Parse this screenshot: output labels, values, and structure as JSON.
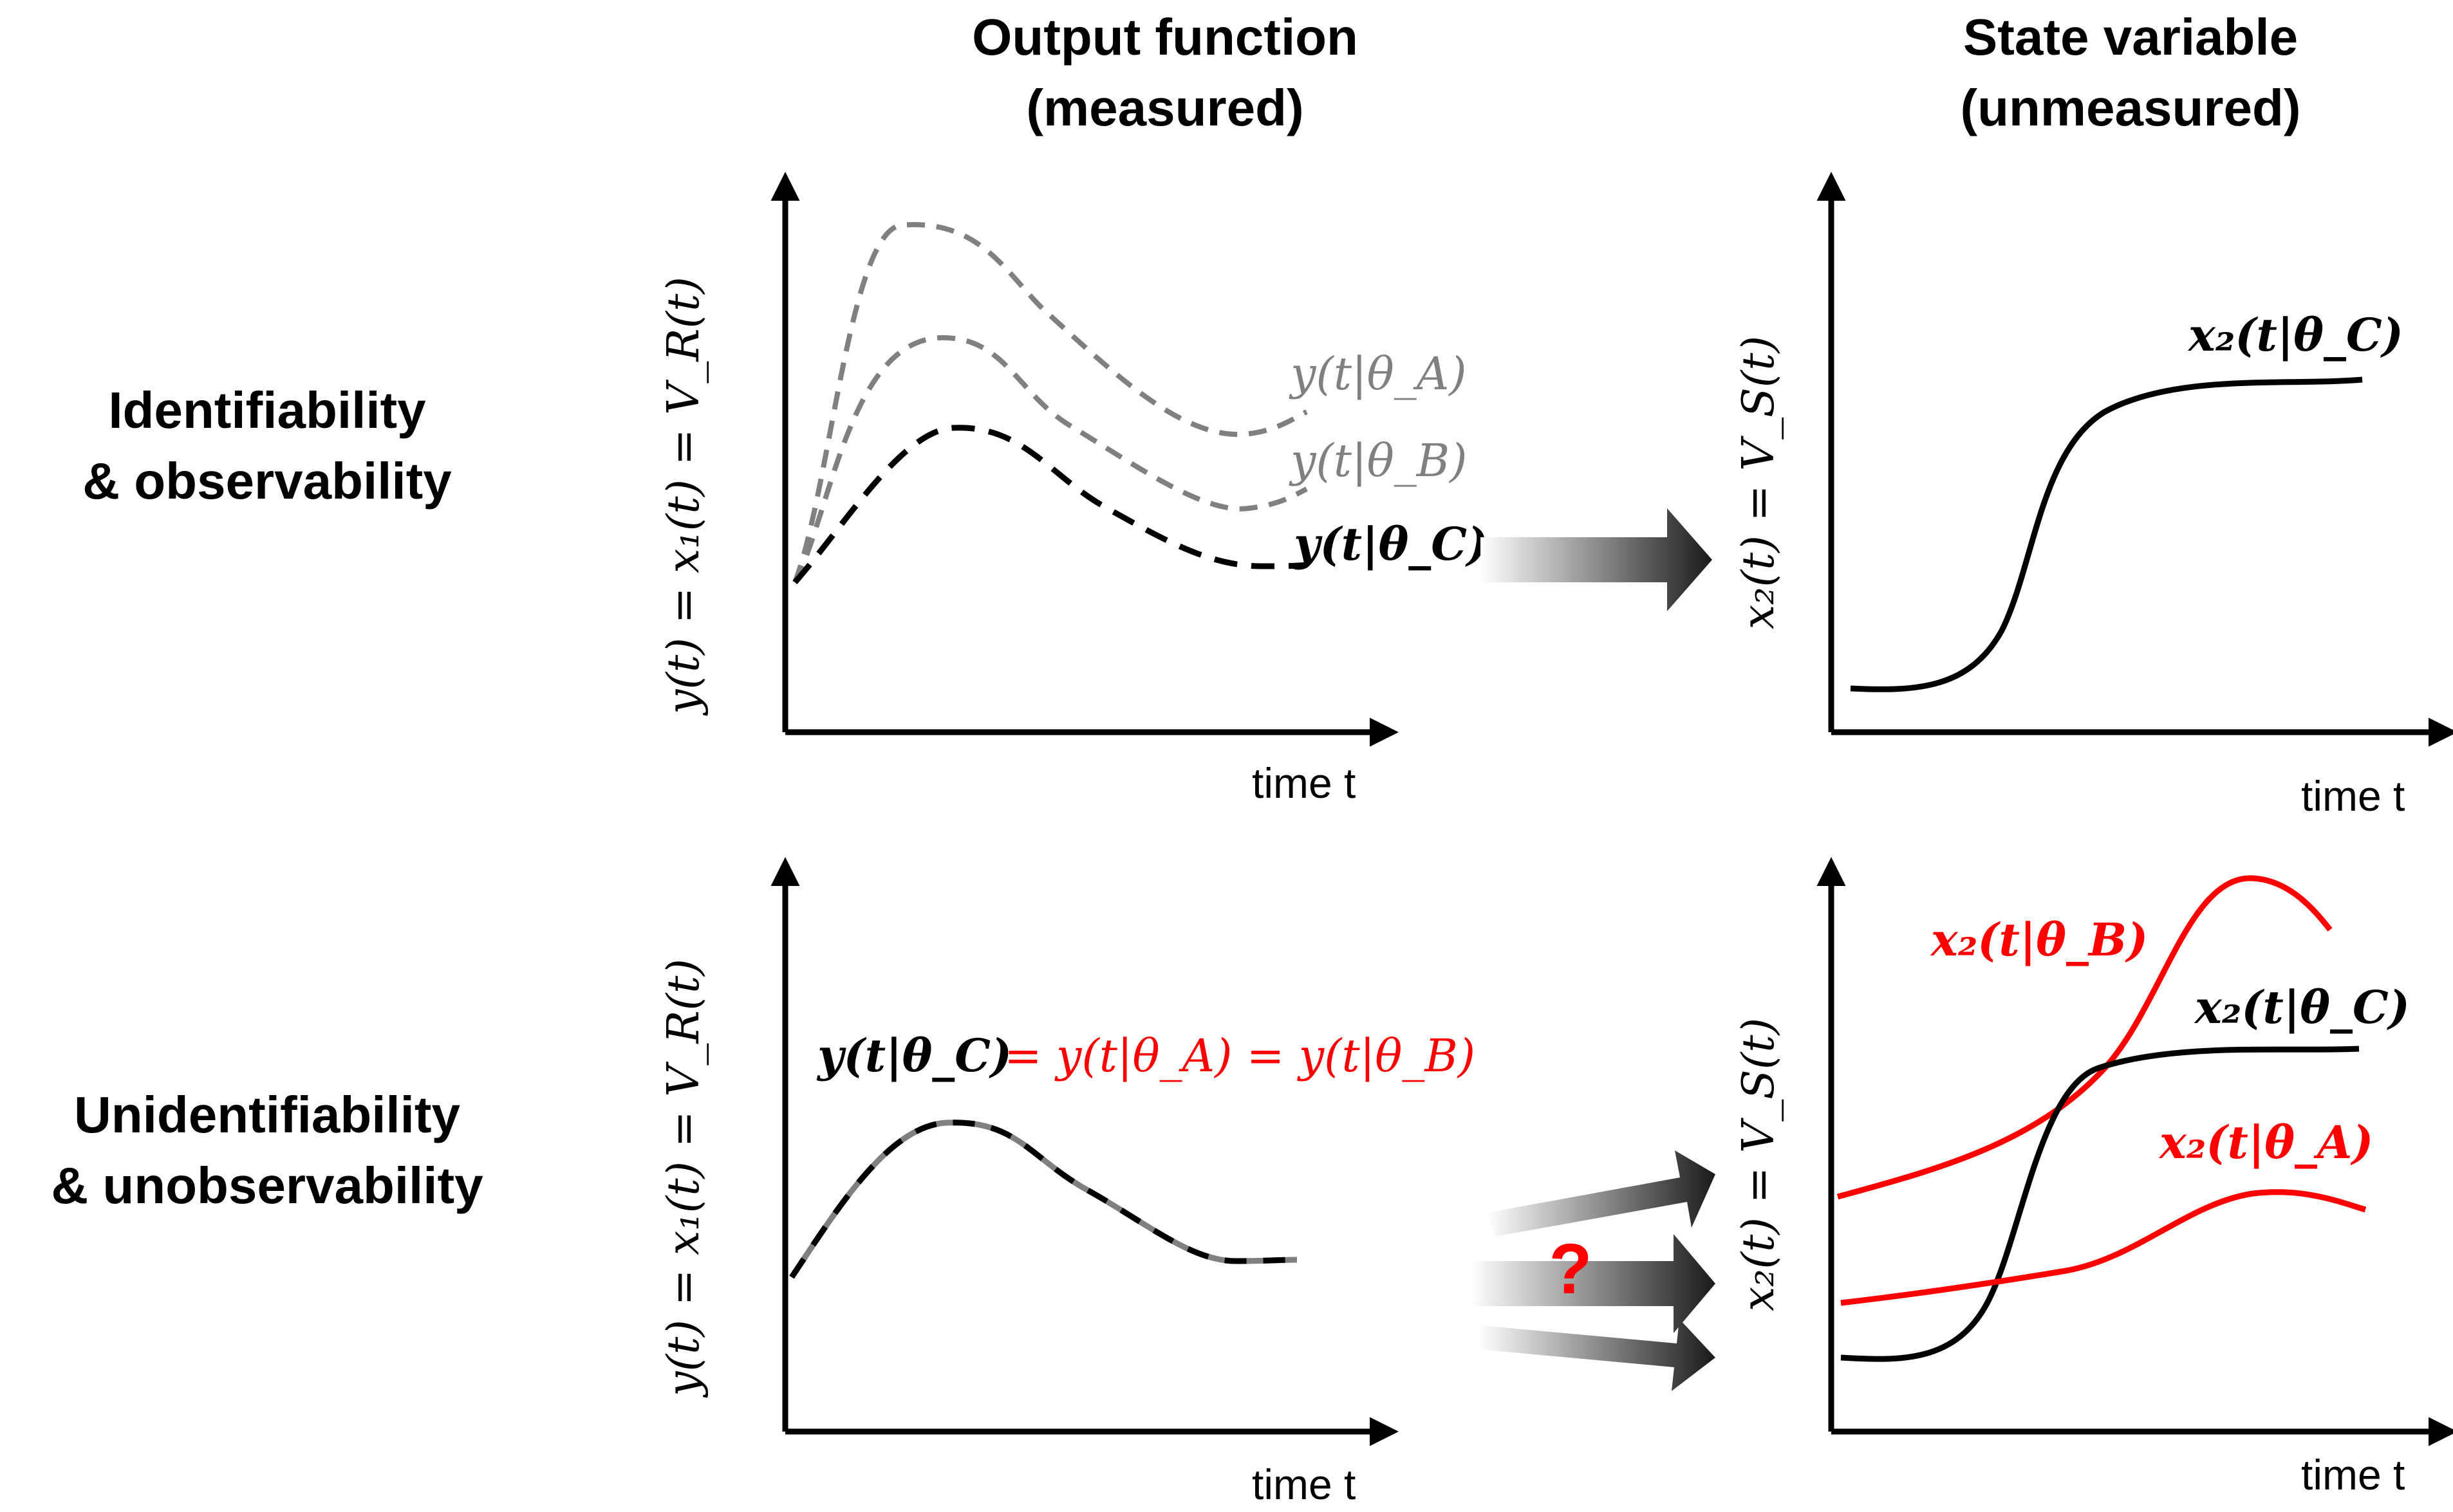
{
  "headers": {
    "output": [
      "Output function",
      "(measured)"
    ],
    "state": [
      "State variable",
      "(unmeasured)"
    ]
  },
  "rows": {
    "top": [
      "Identifiability",
      "& observability"
    ],
    "bottom": [
      "Unidentifiability",
      "& unobservability"
    ]
  },
  "axes": {
    "time_label": "time t",
    "y_output": "y(t) = x₁(t) = V_R(t)",
    "y_state": "x₂(t) = V_S(t)"
  },
  "curve_labels": {
    "top_left": {
      "a": "y(t|θ_A)",
      "b": "y(t|θ_B)",
      "c": "y(t|θ_C)"
    },
    "top_right": {
      "c": "x₂(t|θ_C)"
    },
    "bottom_left": {
      "c": "y(t|θ_C)",
      "equal_ab": "= y(t|θ_A) = y(t|θ_B)"
    },
    "bottom_right": {
      "b": "x₂(t|θ_B)",
      "c": "x₂(t|θ_C)",
      "a": "x₂(t|θ_A)"
    }
  },
  "question_mark": "?",
  "colors": {
    "black": "#000000",
    "gray": "#808080",
    "red": "#ff0000"
  }
}
